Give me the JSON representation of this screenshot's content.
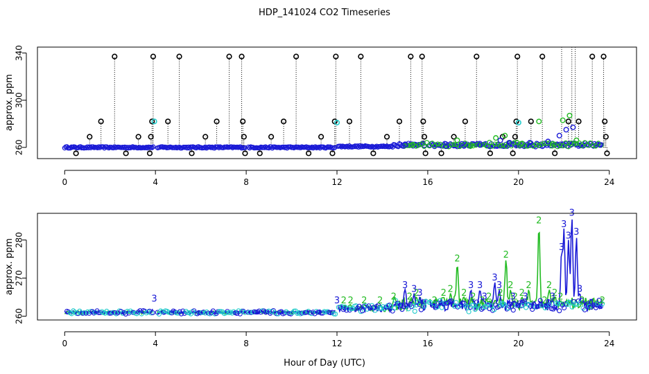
{
  "title": "HDP_141024  CO2 Timeseries",
  "xlabel": "Hour of Day (UTC)",
  "colors": {
    "black": "#000000",
    "green": "#22bb22",
    "blue": "#1a1ad6",
    "cyan": "#22cccc"
  },
  "chart_data": [
    {
      "type": "scatter",
      "ylabel": "approx. ppm",
      "xlim": [
        -1.2,
        25.2
      ],
      "ylim": [
        250.5,
        345
      ],
      "x_ticks": [
        0,
        4,
        8,
        12,
        16,
        20,
        24
      ],
      "y_ticks": [
        260,
        300,
        340
      ],
      "baseline": 260,
      "spikes": [
        {
          "x": 0.5,
          "y": 255
        },
        {
          "x": 1.1,
          "y": 269
        },
        {
          "x": 1.6,
          "y": 282
        },
        {
          "x": 2.2,
          "y": 337
        },
        {
          "x": 2.7,
          "y": 255
        },
        {
          "x": 3.25,
          "y": 269
        },
        {
          "x": 3.75,
          "y": 255
        },
        {
          "x": 3.8,
          "y": 269
        },
        {
          "x": 3.85,
          "y": 282
        },
        {
          "x": 3.9,
          "y": 337
        },
        {
          "x": 4.55,
          "y": 282
        },
        {
          "x": 5.05,
          "y": 337
        },
        {
          "x": 5.6,
          "y": 255
        },
        {
          "x": 6.2,
          "y": 269
        },
        {
          "x": 6.7,
          "y": 282
        },
        {
          "x": 7.25,
          "y": 337
        },
        {
          "x": 7.8,
          "y": 337
        },
        {
          "x": 7.85,
          "y": 282
        },
        {
          "x": 7.9,
          "y": 269
        },
        {
          "x": 7.95,
          "y": 255
        },
        {
          "x": 8.6,
          "y": 255
        },
        {
          "x": 9.1,
          "y": 269
        },
        {
          "x": 9.65,
          "y": 282
        },
        {
          "x": 10.2,
          "y": 337
        },
        {
          "x": 10.75,
          "y": 255
        },
        {
          "x": 11.3,
          "y": 269
        },
        {
          "x": 11.8,
          "y": 255
        },
        {
          "x": 11.9,
          "y": 282
        },
        {
          "x": 11.95,
          "y": 337
        },
        {
          "x": 12.55,
          "y": 282
        },
        {
          "x": 13.05,
          "y": 337
        },
        {
          "x": 13.6,
          "y": 255
        },
        {
          "x": 14.2,
          "y": 269
        },
        {
          "x": 14.75,
          "y": 282
        },
        {
          "x": 15.25,
          "y": 337
        },
        {
          "x": 15.75,
          "y": 337
        },
        {
          "x": 15.8,
          "y": 282
        },
        {
          "x": 15.85,
          "y": 269
        },
        {
          "x": 15.9,
          "y": 255
        },
        {
          "x": 16.6,
          "y": 255
        },
        {
          "x": 17.15,
          "y": 269
        },
        {
          "x": 17.65,
          "y": 282
        },
        {
          "x": 18.15,
          "y": 337
        },
        {
          "x": 18.75,
          "y": 255
        },
        {
          "x": 19.3,
          "y": 269
        },
        {
          "x": 19.75,
          "y": 255
        },
        {
          "x": 19.85,
          "y": 269
        },
        {
          "x": 19.9,
          "y": 282
        },
        {
          "x": 19.95,
          "y": 337
        },
        {
          "x": 20.55,
          "y": 282
        },
        {
          "x": 21.05,
          "y": 337
        },
        {
          "x": 21.6,
          "y": 255
        },
        {
          "x": 21.9,
          "y": 345
        },
        {
          "x": 22.2,
          "y": 282
        },
        {
          "x": 22.35,
          "y": 345
        },
        {
          "x": 22.5,
          "y": 345
        },
        {
          "x": 22.65,
          "y": 282
        },
        {
          "x": 23.25,
          "y": 337
        },
        {
          "x": 23.75,
          "y": 337
        },
        {
          "x": 23.8,
          "y": 282
        },
        {
          "x": 23.85,
          "y": 269
        },
        {
          "x": 23.9,
          "y": 255
        }
      ],
      "elevated": [
        {
          "x": 15.0,
          "y": 262
        },
        {
          "x": 15.3,
          "y": 262
        },
        {
          "x": 16.8,
          "y": 261
        },
        {
          "x": 17.3,
          "y": 266
        },
        {
          "x": 17.5,
          "y": 263
        },
        {
          "x": 17.9,
          "y": 262
        },
        {
          "x": 18.3,
          "y": 262
        },
        {
          "x": 19.0,
          "y": 268
        },
        {
          "x": 19.2,
          "y": 266
        },
        {
          "x": 19.4,
          "y": 270
        },
        {
          "x": 19.6,
          "y": 264
        },
        {
          "x": 20.1,
          "y": 263
        },
        {
          "x": 20.5,
          "y": 264
        },
        {
          "x": 20.9,
          "y": 282
        },
        {
          "x": 21.3,
          "y": 265
        },
        {
          "x": 21.5,
          "y": 263
        },
        {
          "x": 21.8,
          "y": 270
        },
        {
          "x": 21.95,
          "y": 283
        },
        {
          "x": 22.1,
          "y": 275
        },
        {
          "x": 22.25,
          "y": 287
        },
        {
          "x": 22.4,
          "y": 277
        },
        {
          "x": 22.55,
          "y": 266
        },
        {
          "x": 23.6,
          "y": 262
        }
      ],
      "cyan_points": [
        {
          "x": 3.95,
          "y": 282
        },
        {
          "x": 12.0,
          "y": 281
        },
        {
          "x": 20.0,
          "y": 281
        }
      ]
    },
    {
      "type": "line",
      "ylabel": "approx. ppm",
      "xlim": [
        -1.2,
        25.2
      ],
      "ylim": [
        259,
        287
      ],
      "x_ticks": [
        0,
        4,
        8,
        12,
        16,
        20,
        24
      ],
      "y_ticks": [
        260,
        270,
        280
      ],
      "gaps": [
        [
          3.9,
          4.05
        ],
        [
          8.0,
          8.05
        ],
        [
          11.95,
          12.05
        ],
        [
          15.95,
          16.05
        ]
      ],
      "series": [
        {
          "marker": "2",
          "color": "#22bb22",
          "peaks": [
            {
              "x": 12.3,
              "y": 263
            },
            {
              "x": 12.6,
              "y": 263
            },
            {
              "x": 13.2,
              "y": 263
            },
            {
              "x": 13.9,
              "y": 263
            },
            {
              "x": 14.5,
              "y": 264
            },
            {
              "x": 15.2,
              "y": 264
            },
            {
              "x": 15.5,
              "y": 265
            },
            {
              "x": 16.3,
              "y": 263
            },
            {
              "x": 16.7,
              "y": 265
            },
            {
              "x": 17.0,
              "y": 266
            },
            {
              "x": 17.3,
              "y": 274
            },
            {
              "x": 17.6,
              "y": 265
            },
            {
              "x": 18.0,
              "y": 264
            },
            {
              "x": 18.4,
              "y": 263
            },
            {
              "x": 18.7,
              "y": 264
            },
            {
              "x": 19.2,
              "y": 265
            },
            {
              "x": 19.45,
              "y": 275
            },
            {
              "x": 19.65,
              "y": 267
            },
            {
              "x": 19.85,
              "y": 264
            },
            {
              "x": 20.15,
              "y": 265
            },
            {
              "x": 20.45,
              "y": 267
            },
            {
              "x": 20.9,
              "y": 284
            },
            {
              "x": 21.15,
              "y": 263
            },
            {
              "x": 21.35,
              "y": 267
            },
            {
              "x": 21.6,
              "y": 265
            },
            {
              "x": 21.85,
              "y": 264
            },
            {
              "x": 22.8,
              "y": 263
            },
            {
              "x": 23.7,
              "y": 263
            }
          ]
        },
        {
          "marker": "3",
          "color": "#1a1ad6",
          "peaks": [
            {
              "x": 3.95,
              "y": 263.5
            },
            {
              "x": 12.0,
              "y": 263
            },
            {
              "x": 15.0,
              "y": 267
            },
            {
              "x": 15.4,
              "y": 266
            },
            {
              "x": 15.65,
              "y": 265
            },
            {
              "x": 17.9,
              "y": 267
            },
            {
              "x": 18.3,
              "y": 267
            },
            {
              "x": 18.5,
              "y": 264
            },
            {
              "x": 18.95,
              "y": 269
            },
            {
              "x": 19.15,
              "y": 267
            },
            {
              "x": 19.75,
              "y": 264
            },
            {
              "x": 20.3,
              "y": 264
            },
            {
              "x": 21.5,
              "y": 264
            },
            {
              "x": 21.9,
              "y": 277
            },
            {
              "x": 22.0,
              "y": 283
            },
            {
              "x": 22.2,
              "y": 280
            },
            {
              "x": 22.35,
              "y": 286
            },
            {
              "x": 22.55,
              "y": 281
            },
            {
              "x": 22.7,
              "y": 266
            }
          ]
        }
      ]
    }
  ]
}
